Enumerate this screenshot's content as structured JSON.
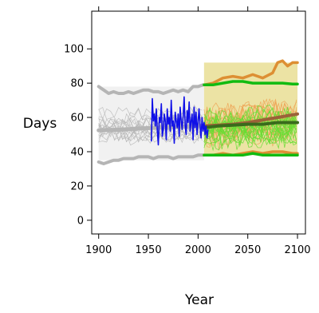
{
  "chart_data": {
    "type": "line",
    "xlabel": "Year",
    "ylabel": "Days",
    "xlim": [
      1893,
      2108
    ],
    "ylim": [
      -8,
      122
    ],
    "x_ticks": [
      1900,
      1950,
      2000,
      2050,
      2100
    ],
    "y_ticks": [
      0,
      20,
      40,
      60,
      80,
      100
    ],
    "grid": false,
    "legend": "none",
    "colors": {
      "historical_band": "#f1f1f1",
      "historical_lines": "#b5b5b5",
      "observed": "#1010e6",
      "future_band": "#ece3a4",
      "future_lines_green": "#66dd33",
      "future_lines_orange": "#eea050",
      "green_envelope": "#11bb11",
      "orange_envelope": "#dd8f33",
      "green_median": "#3a6b1c",
      "orange_median": "#9b6238"
    },
    "regions": [
      {
        "name": "historical",
        "x": [
          1900,
          2006
        ],
        "y": [
          35,
          78
        ]
      },
      {
        "name": "projection",
        "x": [
          2006,
          2100
        ],
        "y": [
          38,
          92
        ]
      }
    ],
    "series": [
      {
        "role": "historical envelope upper",
        "x": [
          1900,
          1905,
          1910,
          1915,
          1920,
          1925,
          1930,
          1935,
          1940,
          1945,
          1950,
          1955,
          1960,
          1965,
          1970,
          1975,
          1980,
          1985,
          1990,
          1995,
          2000,
          2005
        ],
        "values": [
          78,
          76,
          74,
          75,
          74,
          74,
          75,
          74,
          75,
          76,
          76,
          75,
          75,
          74,
          75,
          76,
          75,
          76,
          75,
          78,
          78,
          79
        ]
      },
      {
        "role": "historical envelope lower",
        "x": [
          1900,
          1905,
          1910,
          1915,
          1920,
          1925,
          1930,
          1935,
          1940,
          1945,
          1950,
          1955,
          1960,
          1965,
          1970,
          1975,
          1980,
          1985,
          1990,
          1995,
          2000,
          2005
        ],
        "values": [
          34,
          33,
          34,
          35,
          35,
          36,
          36,
          36,
          37,
          37,
          37,
          36,
          37,
          37,
          37,
          36,
          37,
          37,
          37,
          37,
          38,
          38
        ]
      },
      {
        "role": "historical median",
        "x": [
          1900,
          1920,
          1940,
          1960,
          1980,
          2000,
          2006
        ],
        "values": [
          52.5,
          52.8,
          53.5,
          54,
          54.5,
          55,
          55
        ]
      },
      {
        "role": "observed",
        "x": [
          1953,
          1954,
          1955,
          1956,
          1957,
          1958,
          1959,
          1960,
          1961,
          1962,
          1963,
          1964,
          1965,
          1966,
          1967,
          1968,
          1969,
          1970,
          1971,
          1972,
          1973,
          1974,
          1975,
          1976,
          1977,
          1978,
          1979,
          1980,
          1981,
          1982,
          1983,
          1984,
          1985,
          1986,
          1987,
          1988,
          1989,
          1990,
          1991,
          1992,
          1993,
          1994,
          1995,
          1996,
          1997,
          1998,
          1999,
          2000,
          2001,
          2002,
          2003,
          2004,
          2005,
          2006,
          2007,
          2008,
          2009,
          2010
        ],
        "values": [
          46,
          71,
          58,
          62,
          55,
          65,
          52,
          44,
          60,
          57,
          68,
          49,
          53,
          62,
          58,
          47,
          65,
          56,
          60,
          52,
          70,
          55,
          58,
          45,
          63,
          58,
          54,
          62,
          49,
          66,
          58,
          53,
          61,
          72,
          55,
          50,
          64,
          57,
          69,
          52,
          58,
          62,
          47,
          66,
          54,
          63,
          50,
          58,
          65,
          55,
          48,
          60,
          52,
          57,
          50,
          55,
          48,
          53
        ]
      },
      {
        "role": "green envelope upper",
        "x": [
          2006,
          2015,
          2025,
          2035,
          2045,
          2055,
          2065,
          2075,
          2085,
          2095,
          2100
        ],
        "values": [
          79,
          79,
          80,
          81,
          81,
          80,
          80,
          80,
          80,
          79.5,
          79.5
        ]
      },
      {
        "role": "green envelope lower",
        "x": [
          2006,
          2015,
          2025,
          2035,
          2045,
          2055,
          2065,
          2075,
          2085,
          2095,
          2100
        ],
        "values": [
          38,
          38,
          38,
          38,
          38,
          39,
          38,
          38,
          38,
          38,
          38
        ]
      },
      {
        "role": "orange envelope upper",
        "x": [
          2006,
          2015,
          2025,
          2035,
          2045,
          2055,
          2065,
          2075,
          2080,
          2085,
          2090,
          2095,
          2100
        ],
        "values": [
          79,
          80,
          83,
          84,
          83,
          85,
          83,
          86,
          92,
          93,
          90,
          92,
          92
        ]
      },
      {
        "role": "orange envelope lower",
        "x": [
          2006,
          2015,
          2025,
          2035,
          2045,
          2055,
          2065,
          2075,
          2085,
          2095,
          2100
        ],
        "values": [
          38,
          38,
          39,
          38,
          39,
          40,
          39,
          40,
          40,
          39,
          39
        ]
      },
      {
        "role": "green median",
        "x": [
          2006,
          2020,
          2035,
          2050,
          2065,
          2080,
          2090,
          2100
        ],
        "values": [
          54,
          55,
          55.5,
          56,
          56,
          57,
          57,
          57
        ]
      },
      {
        "role": "orange median",
        "x": [
          2006,
          2020,
          2035,
          2050,
          2060,
          2070,
          2080,
          2090,
          2100
        ],
        "values": [
          55,
          55.5,
          56,
          57,
          58,
          59,
          60,
          61,
          62
        ]
      }
    ]
  }
}
